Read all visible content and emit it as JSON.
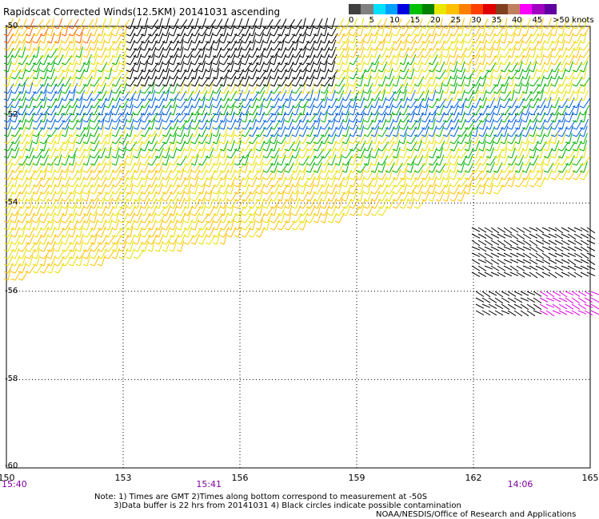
{
  "title": "Rapidscat Corrected Winds(12.5KM) 20141031 ascending",
  "legend": {
    "labels": [
      "0",
      "5",
      "10",
      "15",
      "20",
      "25",
      "30",
      "35",
      "40",
      "45",
      ">50 knots"
    ],
    "colors": [
      "#404040",
      "#808080",
      "#00e0ff",
      "#00a0ff",
      "#0000e0",
      "#00c000",
      "#008000",
      "#e8e800",
      "#ffc000",
      "#ff8000",
      "#ff4000",
      "#e00000",
      "#804020",
      "#c08060",
      "#ff00ff",
      "#a000c0",
      "#6000a0"
    ]
  },
  "axes": {
    "x_ticks": [
      "150",
      "153",
      "156",
      "159",
      "162",
      "165"
    ],
    "y_ticks": [
      "-50",
      "-52",
      "-54",
      "-56",
      "-58",
      "-60"
    ]
  },
  "times": [
    {
      "label": "15:40",
      "lon": 150
    },
    {
      "label": "15:41",
      "lon": 155
    },
    {
      "label": "14:06",
      "lon": 163
    }
  ],
  "notes": {
    "line1": "Note: 1) Times are GMT 2)Times along bottom correspond to measurement at -50S",
    "line2": "3)Data buffer is 22 hrs from 20141031 4) Black circles indicate possible contamination",
    "line3": "NOAA/NESDIS/Office of Research and Applications"
  }
}
